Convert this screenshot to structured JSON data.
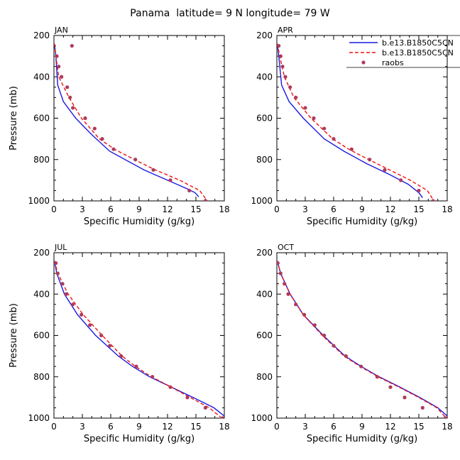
{
  "figure": {
    "title": "Panama  latitude= 9 N longitude= 79 W"
  },
  "colors": {
    "model1": "#1a1adf",
    "model2": "#ee1111",
    "obs": "#b03a5a",
    "axis": "#000000"
  },
  "chart_data": [
    {
      "type": "line",
      "panel": "JAN",
      "xlabel": "Specific Humidity (g/kg)",
      "ylabel": "Pressure (mb)",
      "xlim": [
        0,
        18
      ],
      "ylim": [
        1000,
        200
      ],
      "xticks": [
        0,
        3,
        6,
        9,
        12,
        15,
        18
      ],
      "yticks": [
        200,
        400,
        600,
        800,
        1000
      ],
      "legend": {
        "position": "top-right",
        "entries": [
          "b.e13.B1850C5CN",
          "b.e13.B1850C5CN",
          "raobs"
        ]
      },
      "series": [
        {
          "name": "b.e13.B1850C5CN",
          "style": "solid",
          "p": [
            240,
            300,
            440,
            520,
            600,
            680,
            760,
            850,
            900,
            940,
            960,
            980
          ],
          "q": [
            0.05,
            0.2,
            0.4,
            1.0,
            2.3,
            4.0,
            5.9,
            9.5,
            12.0,
            14.0,
            14.9,
            15.3
          ]
        },
        {
          "name": "b.e13.B1850C5CN",
          "style": "dashed",
          "p": [
            240,
            300,
            400,
            500,
            600,
            700,
            750,
            800,
            850,
            900,
            950,
            1000
          ],
          "q": [
            0.05,
            0.2,
            0.5,
            1.6,
            2.9,
            4.8,
            6.4,
            8.5,
            10.7,
            13.3,
            15.4,
            16.2
          ]
        },
        {
          "name": "raobs",
          "style": "markers",
          "p": [
            250,
            300,
            350,
            400,
            450,
            500,
            550,
            600,
            650,
            700,
            750,
            800,
            850,
            900,
            950,
            1000
          ],
          "q": [
            1.9,
            0.3,
            0.5,
            0.8,
            1.4,
            1.7,
            2.0,
            3.3,
            4.3,
            5.1,
            6.3,
            8.6,
            10.5,
            12.3,
            14.3,
            16.0
          ]
        }
      ]
    },
    {
      "type": "line",
      "panel": "APR",
      "xlabel": "Specific Humidity (g/kg)",
      "ylabel": "",
      "xlim": [
        0,
        18
      ],
      "ylim": [
        1000,
        200
      ],
      "xticks": [
        0,
        3,
        6,
        9,
        12,
        15,
        18
      ],
      "yticks": [
        200,
        400,
        600,
        800,
        1000
      ],
      "series": [
        {
          "name": "b.e13.B1850C5CN",
          "style": "solid",
          "p": [
            240,
            300,
            440,
            520,
            600,
            700,
            760,
            820,
            870,
            920,
            960,
            985
          ],
          "q": [
            0.05,
            0.2,
            0.5,
            1.3,
            2.8,
            5.0,
            7.1,
            9.5,
            11.8,
            13.9,
            15.0,
            15.4
          ]
        },
        {
          "name": "b.e13.B1850C5CN",
          "style": "dashed",
          "p": [
            240,
            300,
            400,
            500,
            600,
            700,
            750,
            800,
            850,
            900,
            950,
            1000
          ],
          "q": [
            0.05,
            0.3,
            0.8,
            1.8,
            3.6,
            5.9,
            7.6,
            9.7,
            11.9,
            14.1,
            15.9,
            16.6
          ]
        },
        {
          "name": "raobs",
          "style": "markers",
          "p": [
            250,
            300,
            350,
            400,
            450,
            500,
            550,
            600,
            650,
            700,
            750,
            800,
            850,
            900,
            950,
            1000
          ],
          "q": [
            0.2,
            0.4,
            0.6,
            0.9,
            1.4,
            2.0,
            3.0,
            3.9,
            5.0,
            6.0,
            7.9,
            9.8,
            11.4,
            13.1,
            15.0,
            16.5
          ]
        }
      ]
    },
    {
      "type": "line",
      "panel": "JUL",
      "xlabel": "Specific Humidity (g/kg)",
      "ylabel": "Pressure (mb)",
      "xlim": [
        0,
        18
      ],
      "ylim": [
        1000,
        200
      ],
      "xticks": [
        0,
        3,
        6,
        9,
        12,
        15,
        18
      ],
      "yticks": [
        200,
        400,
        600,
        800,
        1000
      ],
      "series": [
        {
          "name": "b.e13.B1850C5CN",
          "style": "solid",
          "p": [
            240,
            300,
            400,
            500,
            600,
            700,
            750,
            800,
            850,
            900,
            950,
            990
          ],
          "q": [
            0.05,
            0.3,
            1.1,
            2.5,
            4.4,
            6.8,
            8.3,
            10.1,
            12.4,
            14.7,
            16.9,
            18.0
          ]
        },
        {
          "name": "b.e13.B1850C5CN",
          "style": "dashed",
          "p": [
            240,
            300,
            400,
            500,
            600,
            700,
            750,
            800,
            850,
            900,
            950,
            995
          ],
          "q": [
            0.05,
            0.4,
            1.5,
            3.1,
            5.1,
            7.2,
            8.6,
            10.3,
            12.4,
            14.4,
            16.4,
            17.6
          ]
        },
        {
          "name": "raobs",
          "style": "markers",
          "p": [
            250,
            300,
            350,
            400,
            450,
            500,
            550,
            600,
            650,
            700,
            750,
            800,
            850,
            900,
            950,
            1000
          ],
          "q": [
            0.2,
            0.4,
            0.9,
            1.3,
            2.0,
            2.9,
            3.8,
            5.0,
            5.9,
            7.1,
            8.7,
            10.4,
            12.3,
            14.1,
            16.0,
            17.8
          ]
        }
      ]
    },
    {
      "type": "line",
      "panel": "OCT",
      "xlabel": "Specific Humidity (g/kg)",
      "ylabel": "",
      "xlim": [
        0,
        18
      ],
      "ylim": [
        1000,
        200
      ],
      "xticks": [
        0,
        3,
        6,
        9,
        12,
        15,
        18
      ],
      "yticks": [
        200,
        400,
        600,
        800,
        1000
      ],
      "series": [
        {
          "name": "b.e13.B1850C5CN",
          "style": "solid",
          "p": [
            240,
            300,
            400,
            500,
            600,
            700,
            750,
            800,
            850,
            900,
            950,
            990
          ],
          "q": [
            0.05,
            0.4,
            1.4,
            2.8,
            4.9,
            7.2,
            8.9,
            10.8,
            13.0,
            15.1,
            17.0,
            18.0
          ]
        },
        {
          "name": "b.e13.B1850C5CN",
          "style": "dashed",
          "p": [
            240,
            300,
            400,
            500,
            600,
            700,
            750,
            800,
            850,
            900,
            950,
            1000
          ],
          "q": [
            0.05,
            0.4,
            1.4,
            2.8,
            4.8,
            7.1,
            8.8,
            10.7,
            12.9,
            15.0,
            16.9,
            17.9
          ]
        },
        {
          "name": "raobs",
          "style": "markers",
          "p": [
            250,
            300,
            350,
            400,
            450,
            500,
            550,
            600,
            650,
            700,
            750,
            800,
            850,
            900,
            950,
            1000
          ],
          "q": [
            0.1,
            0.4,
            0.8,
            1.2,
            2.0,
            2.9,
            4.0,
            5.0,
            6.0,
            7.3,
            8.9,
            10.6,
            12.0,
            13.5,
            15.4,
            17.8
          ]
        }
      ]
    }
  ]
}
